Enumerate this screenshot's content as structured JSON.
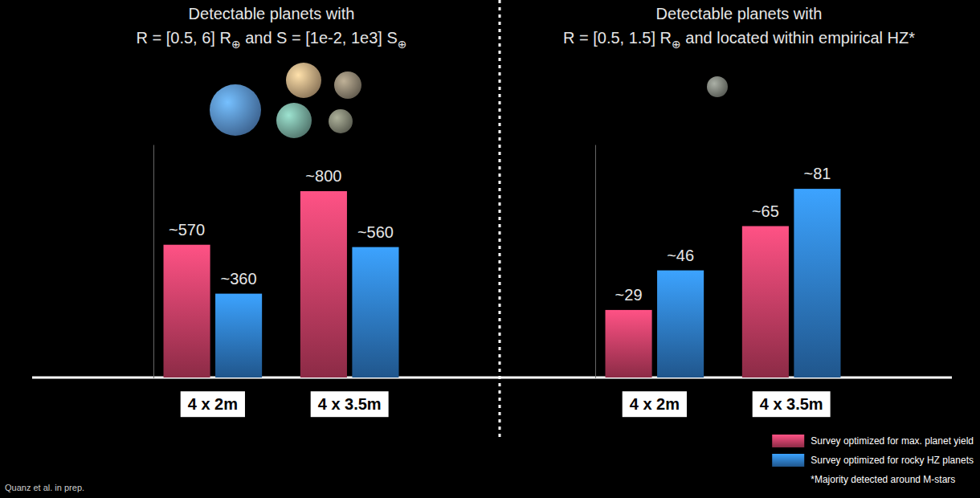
{
  "chart_data": [
    {
      "type": "bar",
      "title": "Detectable planets with",
      "subtitle": "R = [0.5, 6] R⊕ and S = [1e-2, 1e3] S⊕",
      "categories": [
        "4 x 2m",
        "4 x 3.5m"
      ],
      "series": [
        {
          "color": "#d04068",
          "values": [
            570,
            800
          ],
          "value_labels": [
            "~570",
            "~800"
          ]
        },
        {
          "color": "#2f7fd0",
          "values": [
            360,
            560
          ],
          "value_labels": [
            "~360",
            "~560"
          ]
        }
      ],
      "ylim": [
        0,
        1000
      ],
      "tick_labels": "x",
      "data_labels": true,
      "annotations": [
        "Quanz et al. in prep."
      ]
    },
    {
      "type": "bar",
      "title": "Detectable planets with",
      "subtitle": "R = [0.5, 1.5] R⊕  and located within empirical HZ*",
      "categories": [
        "4 x 2m",
        "4 x 3.5m"
      ],
      "series": [
        {
          "name": "Survey optimized for max. planet yield",
          "color": "#d04068",
          "values": [
            29,
            65
          ],
          "value_labels": [
            "~29",
            "~65"
          ]
        },
        {
          "name": "Survey optimized for rocky HZ planets",
          "color": "#2f7fd0",
          "values": [
            46,
            81
          ],
          "value_labels": [
            "~46",
            "~81"
          ]
        }
      ],
      "ylim": [
        0,
        100
      ],
      "tick_labels": "x",
      "data_labels": true,
      "legend": "lower right",
      "annotations": [
        "*Majority detected around M-stars"
      ]
    }
  ]
}
